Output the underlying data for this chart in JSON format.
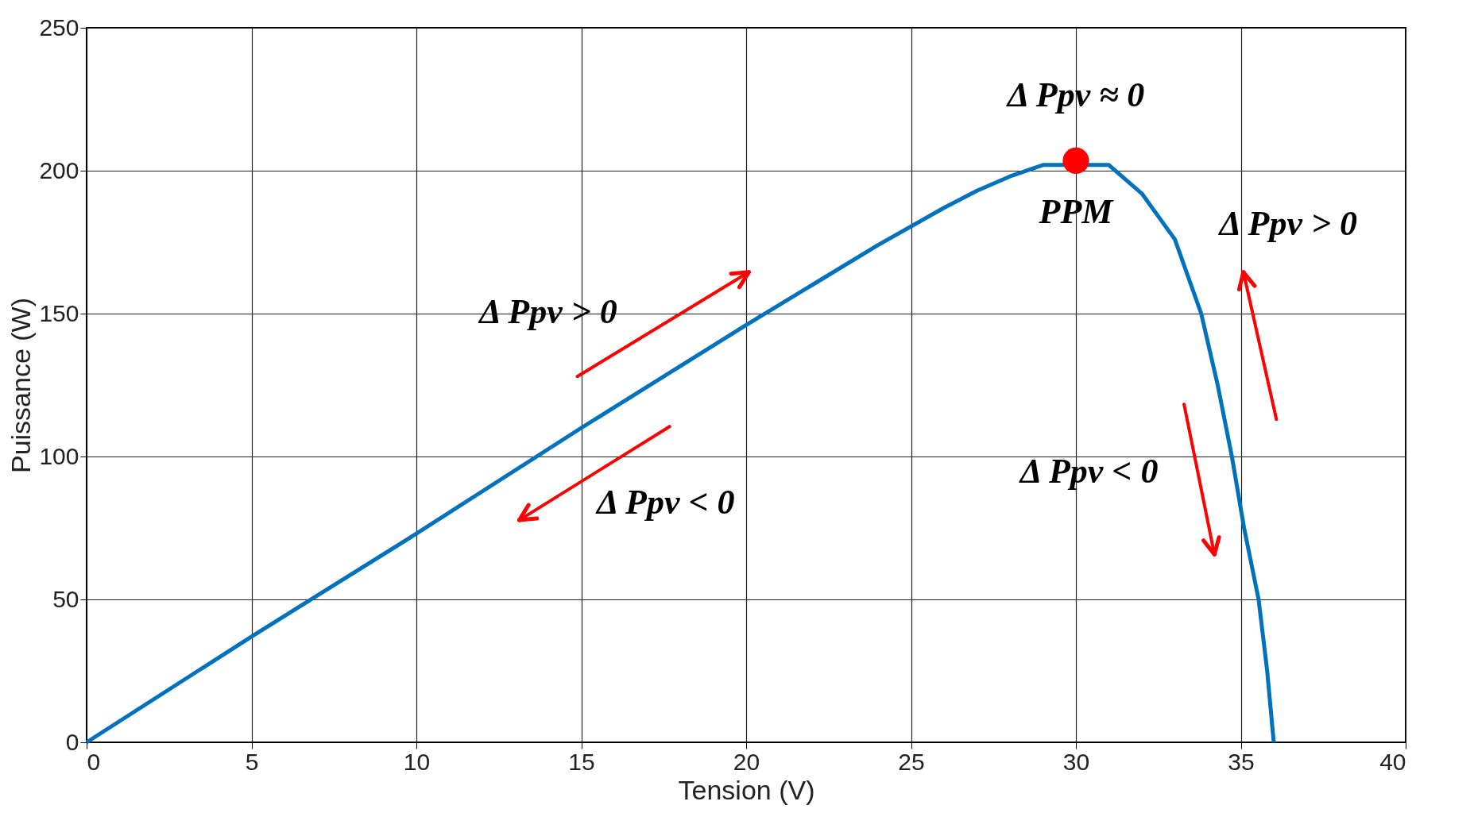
{
  "chart_data": {
    "type": "line",
    "xlabel": "Tension (V)",
    "ylabel": "Puissance (W)",
    "xlim": [
      0,
      40
    ],
    "xticks": [
      0,
      5,
      10,
      15,
      20,
      25,
      30,
      35,
      40
    ],
    "ylim": [
      0,
      250
    ],
    "yticks": [
      0,
      50,
      100,
      150,
      200,
      250
    ],
    "grid": true,
    "series": [
      {
        "color": "#0072bd",
        "line_style": "solid",
        "marker": "none",
        "x": [
          0,
          5,
          10,
          15,
          20,
          22,
          24,
          26,
          27,
          28,
          29,
          31,
          32,
          33,
          33.8,
          34.3,
          34.73,
          35.1,
          35.54,
          35.8,
          36
        ],
        "values": [
          0,
          37,
          73,
          110,
          146,
          160,
          174,
          187,
          193,
          198,
          202,
          202,
          192,
          176,
          150,
          125,
          100,
          75,
          50,
          25,
          0
        ]
      },
      {
        "type": "scatter",
        "color": "#ff0000",
        "marker": "circle",
        "x": [
          30
        ],
        "values": [
          203.5
        ]
      }
    ],
    "annotations": [
      "Δ Ppv ≈ 0",
      "PPM",
      "Δ Ppv > 0",
      "Δ Ppv > 0",
      "Δ Ppv < 0",
      "Δ Ppv < 0"
    ]
  }
}
